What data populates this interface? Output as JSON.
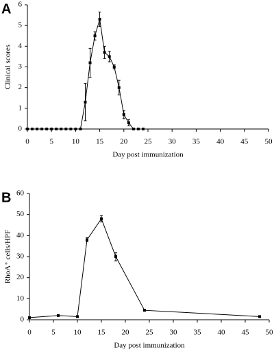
{
  "chart_data": [
    {
      "type": "line",
      "panel": "A",
      "x_label": "Day post immunization",
      "y_label": "Clinical scores",
      "x": [
        0,
        1,
        2,
        3,
        4,
        5,
        6,
        7,
        8,
        9,
        10,
        11,
        12,
        13,
        14,
        15,
        16,
        17,
        18,
        19,
        20,
        21,
        22,
        23,
        24
      ],
      "series": [
        {
          "color": "#000000",
          "values": [
            0,
            0,
            0,
            0,
            0,
            0,
            0,
            0,
            0,
            0,
            0,
            0,
            1.3,
            3.2,
            4.5,
            5.3,
            3.7,
            3.5,
            3.0,
            2.0,
            0.7,
            0.3,
            0,
            0,
            0
          ],
          "errors": [
            null,
            null,
            null,
            null,
            null,
            null,
            null,
            null,
            null,
            null,
            null,
            null,
            0.9,
            0.7,
            0.2,
            0.35,
            0.3,
            0.25,
            0.1,
            0.35,
            0.2,
            0.15,
            null,
            null,
            null
          ]
        }
      ],
      "xlim": [
        0,
        50
      ],
      "xticks": [
        0,
        5,
        10,
        15,
        20,
        25,
        30,
        35,
        40,
        45,
        50
      ],
      "ylim": [
        0,
        6
      ],
      "yticks": [
        0,
        1,
        2,
        3,
        4,
        5,
        6
      ]
    },
    {
      "type": "line",
      "panel": "B",
      "x_label": "Day post immunization",
      "y_label": "RhoA⁺ cells/HPF",
      "x": [
        0,
        6,
        10,
        12,
        15,
        18,
        24,
        48
      ],
      "series": [
        {
          "color": "#000000",
          "values": [
            1,
            2,
            1.5,
            38,
            48,
            30,
            4.5,
            1.5
          ],
          "errors": [
            null,
            null,
            null,
            1,
            1.5,
            2,
            null,
            null
          ]
        }
      ],
      "xlim": [
        0,
        50
      ],
      "xticks": [
        0,
        5,
        10,
        15,
        20,
        25,
        30,
        35,
        40,
        45,
        50
      ],
      "ylim": [
        0,
        60
      ],
      "yticks": [
        0,
        10,
        20,
        30,
        40,
        50,
        60
      ]
    }
  ]
}
